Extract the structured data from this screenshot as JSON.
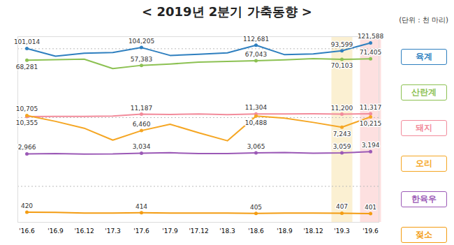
{
  "chart_data": {
    "type": "line",
    "title": "< 2019년 2분기 가축동향 >",
    "subtitle": "(단위 : 천 마리)",
    "categories": [
      "'16.6",
      "'16.9",
      "'16.12",
      "'17.3",
      "'17.6",
      "'17.9",
      "'17.12",
      "'18.3",
      "'18.6",
      "'18.9",
      "'18.12",
      "'19.3",
      "'19.6"
    ],
    "series": [
      {
        "name": "육계",
        "color": "#2e7fbf",
        "values": [
          101014,
          78000,
          86000,
          88000,
          104205,
          80000,
          83000,
          87000,
          112681,
          82000,
          84000,
          93599,
          121588
        ],
        "value_labels": [
          "101,014",
          null,
          null,
          null,
          "104,205",
          null,
          null,
          null,
          "112,681",
          null,
          null,
          "93,599",
          "121,588"
        ]
      },
      {
        "name": "산란계",
        "color": "#8cc152",
        "values": [
          68281,
          69500,
          70500,
          51500,
          57383,
          60000,
          64000,
          65500,
          67043,
          69000,
          72000,
          70103,
          71405
        ],
        "value_labels": [
          "68,281",
          null,
          null,
          null,
          "57,383",
          null,
          null,
          null,
          "67,043",
          null,
          null,
          "70,103",
          "71,405"
        ]
      },
      {
        "name": "돼지",
        "color": "#f28b9b",
        "values": [
          10355,
          10400,
          10367,
          10513,
          11187,
          11100,
          11273,
          11040,
          11304,
          11300,
          11333,
          11200,
          11317
        ],
        "value_labels": [
          "10,355",
          null,
          null,
          null,
          "11,187",
          null,
          null,
          null,
          "11,304",
          null,
          null,
          "11,200",
          "11,317"
        ]
      },
      {
        "name": "오리",
        "color": "#f5a623",
        "values": [
          10705,
          8800,
          7000,
          4700,
          6460,
          8000,
          6000,
          4600,
          10488,
          9800,
          8500,
          7243,
          10215
        ],
        "value_labels": [
          "10,705",
          null,
          null,
          null,
          "6,460",
          null,
          null,
          null,
          "10,488",
          null,
          null,
          "7,243",
          "10,215"
        ]
      },
      {
        "name": "한육우",
        "color": "#9b59b6",
        "values": [
          2966,
          2990,
          2950,
          2960,
          3034,
          3080,
          2990,
          3000,
          3065,
          3110,
          3030,
          3059,
          3194
        ],
        "value_labels": [
          "2,966",
          null,
          null,
          null,
          "3,034",
          null,
          null,
          null,
          "3,065",
          null,
          null,
          "3,059",
          "3,194"
        ]
      },
      {
        "name": "젖소",
        "color": "#f39c12",
        "values": [
          420,
          418,
          410,
          410,
          414,
          410,
          408,
          408,
          405,
          408,
          408,
          407,
          401
        ],
        "value_labels": [
          "420",
          null,
          null,
          null,
          "414",
          null,
          null,
          null,
          "405",
          null,
          null,
          "407",
          "401"
        ]
      }
    ],
    "log": "y",
    "ylim": [
      300,
      150000
    ],
    "yticks": [
      1000,
      10000,
      100000
    ],
    "grid": true,
    "tick_labels": "x",
    "data_labels": true,
    "legend": "right"
  }
}
